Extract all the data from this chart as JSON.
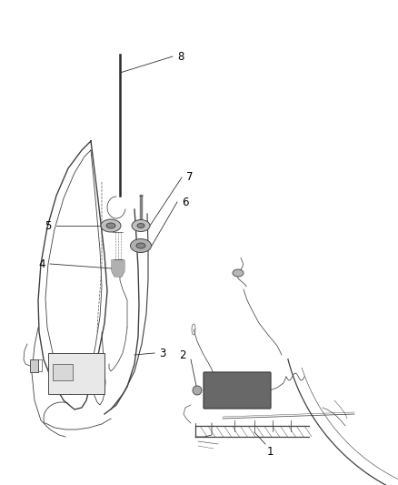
{
  "background_color": "#ffffff",
  "line_color": "#404040",
  "label_color": "#000000",
  "figsize": [
    4.38,
    5.33
  ],
  "dpi": 100,
  "label_fontsize": 8.5,
  "leader_lw": 0.6,
  "main_lw": 0.9,
  "detail_lw": 0.6
}
